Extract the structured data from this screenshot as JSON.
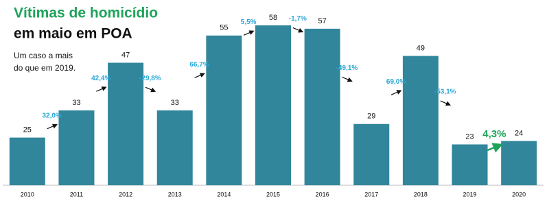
{
  "chart_data": {
    "type": "bar",
    "title": "Vítimas de homicídio",
    "subtitle": "em maio em POA",
    "annotation": [
      "Um caso a mais",
      "do que em 2019."
    ],
    "categories": [
      "2010",
      "2011",
      "2012",
      "2013",
      "2014",
      "2015",
      "2016",
      "2017",
      "2018",
      "2019",
      "2020"
    ],
    "values": [
      25,
      33,
      47,
      33,
      55,
      58,
      57,
      29,
      49,
      23,
      24
    ],
    "color": "#31869b",
    "ylim": [
      11,
      60
    ],
    "change_values": [
      32.0,
      42.4,
      -29.8,
      66.7,
      5.5,
      -1.7,
      -49.1,
      69.0,
      -53.1,
      4.3
    ],
    "change_labels": [
      "32,0%",
      "42,4%",
      "-29,8%",
      "66,7%",
      "5,5%",
      "-1,7%",
      "-49,1%",
      "69,0%",
      "-53,1%",
      "4,3%"
    ],
    "change_colors": [
      "#2aa7d6",
      "#2aa7d6",
      "#2aa7d6",
      "#2aa7d6",
      "#2aa7d6",
      "#2aa7d6",
      "#2aa7d6",
      "#2aa7d6",
      "#2aa7d6",
      "#1ea35a"
    ]
  }
}
